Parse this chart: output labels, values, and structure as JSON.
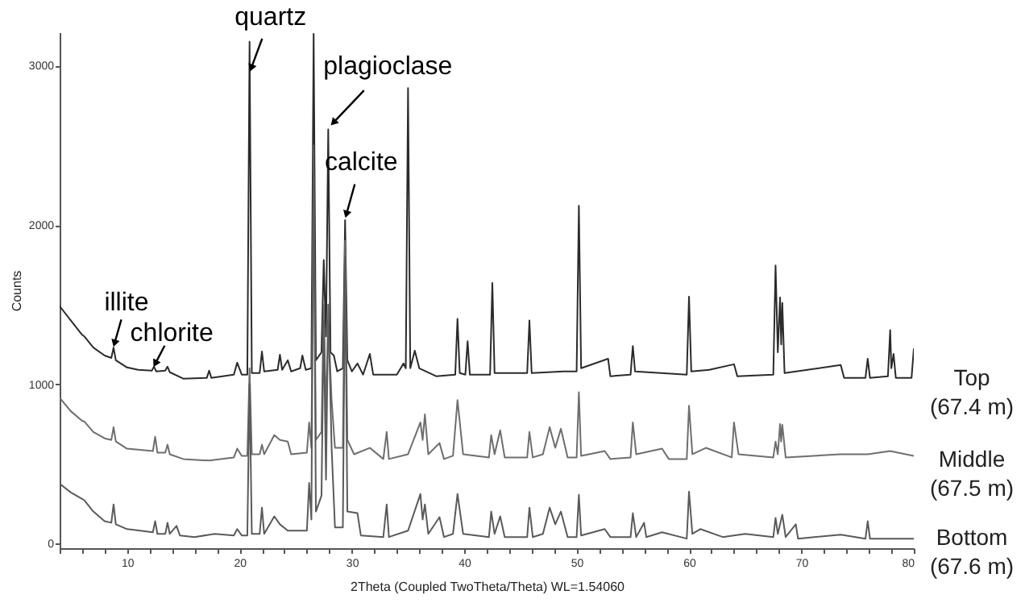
{
  "chart_data": {
    "type": "line",
    "xlabel": "2Theta (Coupled TwoTheta/Theta) WL=1.54060",
    "ylabel": "Counts",
    "xlim": [
      4,
      80
    ],
    "ylim": [
      -30,
      3210
    ],
    "xticks": [
      {
        "value": 4,
        "label": null
      },
      {
        "value": 6,
        "label": null
      },
      {
        "value": 8,
        "label": null
      },
      10,
      {
        "value": 12,
        "label": null
      },
      {
        "value": 14,
        "label": null
      },
      {
        "value": 16,
        "label": null
      },
      {
        "value": 18,
        "label": null
      },
      20,
      {
        "value": 22,
        "label": null
      },
      {
        "value": 24,
        "label": null
      },
      {
        "value": 26,
        "label": null
      },
      {
        "value": 28,
        "label": null
      },
      30,
      {
        "value": 32,
        "label": null
      },
      {
        "value": 34,
        "label": null
      },
      {
        "value": 36,
        "label": null
      },
      {
        "value": 38,
        "label": null
      },
      40,
      {
        "value": 42,
        "label": null
      },
      {
        "value": 44,
        "label": null
      },
      {
        "value": 46,
        "label": null
      },
      {
        "value": 48,
        "label": null
      },
      50,
      {
        "value": 52,
        "label": null
      },
      {
        "value": 54,
        "label": null
      },
      {
        "value": 56,
        "label": null
      },
      {
        "value": 58,
        "label": null
      },
      60,
      {
        "value": 62,
        "label": null
      },
      {
        "value": 64,
        "label": null
      },
      {
        "value": 66,
        "label": null
      },
      {
        "value": 68,
        "label": null
      },
      70,
      {
        "value": 72,
        "label": null
      },
      {
        "value": 74,
        "label": null
      },
      {
        "value": 76,
        "label": null
      },
      {
        "value": 78,
        "label": null
      },
      80
    ],
    "yticks": [
      0,
      1000,
      2000,
      3000
    ],
    "grid": false,
    "legend": false,
    "marker": "none",
    "line_style": "solid",
    "annotations": [
      {
        "text": "quartz",
        "x": 20.9,
        "y": 2950
      },
      {
        "text": "plagioclase",
        "x": 27.9,
        "y": 2600
      },
      {
        "text": "calcite",
        "x": 29.4,
        "y": 2030
      },
      {
        "text": "illite",
        "x": 8.8,
        "y": 1230
      },
      {
        "text": "chlorite",
        "x": 12.4,
        "y": 1110
      }
    ],
    "series": [
      {
        "name": "Top (67.4 m)",
        "color": "#2b2b2b",
        "x": [
          4,
          5,
          6,
          6.2,
          7,
          8,
          8.6,
          8.8,
          9.0,
          10,
          11,
          12.2,
          12.4,
          12.6,
          13.4,
          13.6,
          13.8,
          15,
          17.1,
          17.3,
          17.5,
          19.5,
          19.8,
          20.2,
          20.7,
          20.9,
          21.1,
          21.8,
          22.0,
          22.2,
          23.4,
          23.6,
          23.8,
          24.3,
          24.6,
          25.4,
          25.6,
          25.9,
          26.4,
          26.6,
          26.8,
          27.3,
          27.5,
          27.7,
          27.9,
          28.1,
          28.4,
          28.7,
          29.2,
          29.4,
          29.6,
          30.0,
          30.5,
          31.0,
          31.6,
          31.9,
          34,
          34.6,
          34.8,
          35.0,
          35.2,
          35.6,
          36.0,
          37.5,
          39.2,
          39.4,
          39.6,
          40.1,
          40.3,
          40.5,
          42.3,
          42.5,
          42.7,
          45.6,
          45.8,
          46.0,
          48.8,
          50.0,
          50.2,
          50.4,
          52.8,
          53,
          54.8,
          55.0,
          55.2,
          59.8,
          60.0,
          60.2,
          61.8,
          64.0,
          64.3,
          67.5,
          67.7,
          67.9,
          68.1,
          68.2,
          68.3,
          68.5,
          73.5,
          73.8,
          75.7,
          75.9,
          76.1,
          77.7,
          77.9,
          78.0,
          78.2,
          78.4,
          79.8,
          80.0
        ],
        "values": [
          1490,
          1400,
          1310,
          1300,
          1230,
          1180,
          1165,
          1230,
          1150,
          1105,
          1090,
          1085,
          1110,
          1080,
          1085,
          1110,
          1075,
          1035,
          1040,
          1085,
          1040,
          1060,
          1135,
          1060,
          1060,
          3150,
          1070,
          1070,
          1205,
          1080,
          1090,
          1185,
          1090,
          1150,
          1080,
          1100,
          1180,
          1090,
          1100,
          3200,
          1150,
          1200,
          1780,
          1300,
          2600,
          1200,
          1180,
          1080,
          1100,
          2030,
          1150,
          1080,
          1130,
          1060,
          1190,
          1060,
          1060,
          1130,
          1100,
          2860,
          1100,
          1210,
          1100,
          1050,
          1060,
          1410,
          1070,
          1060,
          1270,
          1060,
          1060,
          1635,
          1070,
          1070,
          1400,
          1070,
          1080,
          1080,
          2120,
          1100,
          1160,
          1050,
          1060,
          1240,
          1080,
          1060,
          1550,
          1080,
          1090,
          1125,
          1050,
          1060,
          1746,
          1200,
          1545,
          1250,
          1510,
          1070,
          1120,
          1040,
          1040,
          1160,
          1040,
          1050,
          1340,
          1100,
          1190,
          1040,
          1040,
          1220
        ]
      },
      {
        "name": "Middle (67.5 m)",
        "color": "#6e6e6e",
        "x": [
          4,
          5,
          6,
          6.2,
          7,
          8,
          8.6,
          8.8,
          9.0,
          10,
          12.3,
          12.5,
          12.7,
          13.4,
          13.6,
          13.8,
          15,
          17.3,
          19.5,
          19.8,
          20.2,
          20.7,
          20.9,
          21.1,
          21.8,
          22.0,
          22.2,
          23.1,
          23.6,
          24.3,
          24.6,
          26.0,
          26.2,
          26.4,
          26.6,
          26.8,
          27.3,
          27.5,
          27.7,
          27.9,
          28.2,
          28.5,
          29.2,
          29.4,
          29.6,
          30.2,
          31.6,
          32.8,
          33.1,
          33.3,
          35.0,
          36.1,
          36.3,
          36.5,
          36.8,
          37.8,
          38.2,
          39.0,
          39.4,
          39.9,
          42.2,
          42.4,
          42.7,
          43.2,
          43.6,
          45.6,
          45.8,
          46.1,
          47.0,
          47.6,
          48.1,
          48.6,
          49.2,
          50.0,
          50.2,
          50.4,
          52.5,
          53,
          54.8,
          55.0,
          55.3,
          57.6,
          58.2,
          59.8,
          60.0,
          60.3,
          61.5,
          63.8,
          64.0,
          64.4,
          67.5,
          67.7,
          67.9,
          68.1,
          68.2,
          68.3,
          68.6,
          73.5,
          75.9,
          77.9,
          80.0
        ],
        "values": [
          915,
          830,
          770,
          765,
          700,
          660,
          650,
          730,
          640,
          595,
          580,
          670,
          570,
          570,
          620,
          560,
          530,
          520,
          540,
          595,
          550,
          550,
          1100,
          560,
          560,
          620,
          560,
          680,
          650,
          640,
          560,
          570,
          760,
          600,
          2300,
          650,
          700,
          1500,
          800,
          1400,
          900,
          600,
          600,
          1900,
          650,
          560,
          600,
          530,
          700,
          530,
          560,
          760,
          650,
          810,
          560,
          630,
          530,
          550,
          900,
          560,
          540,
          680,
          560,
          710,
          540,
          540,
          700,
          540,
          560,
          730,
          600,
          720,
          540,
          540,
          950,
          550,
          580,
          530,
          540,
          760,
          560,
          595,
          530,
          530,
          865,
          560,
          600,
          540,
          760,
          560,
          540,
          640,
          560,
          750,
          640,
          745,
          540,
          560,
          560,
          580,
          550
        ]
      },
      {
        "name": "Bottom (67.6 m)",
        "color": "#5a5a5a",
        "x": [
          4,
          5,
          6,
          6.2,
          7,
          8,
          8.6,
          8.8,
          9.0,
          10,
          12.3,
          12.5,
          12.7,
          13.4,
          13.6,
          13.8,
          14.4,
          14.7,
          16,
          17.8,
          19.5,
          19.8,
          20.2,
          20.7,
          20.9,
          21.1,
          21.8,
          22.0,
          22.2,
          23.1,
          23.6,
          24.3,
          26.0,
          26.2,
          26.4,
          26.6,
          26.8,
          27.3,
          27.5,
          27.7,
          27.9,
          28.2,
          28.5,
          29.2,
          29.4,
          29.6,
          30.5,
          30.8,
          32.8,
          33.1,
          33.3,
          35.0,
          36.1,
          36.3,
          36.5,
          36.8,
          37.8,
          38.2,
          39.0,
          39.4,
          39.9,
          42.2,
          42.4,
          42.7,
          43.2,
          43.6,
          45.6,
          45.8,
          46.1,
          47.0,
          47.6,
          48.1,
          48.6,
          49.2,
          50.0,
          50.2,
          50.4,
          52.5,
          53,
          54.8,
          55.0,
          55.3,
          56.0,
          56.2,
          57.6,
          59.8,
          60.0,
          60.3,
          61.0,
          63,
          65,
          67.5,
          67.7,
          67.9,
          68.3,
          68.6,
          69.5,
          69.7,
          73.5,
          75.7,
          75.9,
          76.1,
          80.0
        ],
        "values": [
          375,
          320,
          280,
          270,
          200,
          140,
          130,
          245,
          120,
          90,
          70,
          140,
          60,
          60,
          130,
          60,
          110,
          50,
          40,
          60,
          50,
          90,
          50,
          50,
          1000,
          60,
          60,
          225,
          60,
          170,
          120,
          80,
          80,
          380,
          150,
          2500,
          200,
          300,
          1400,
          400,
          1500,
          600,
          100,
          100,
          1800,
          200,
          190,
          50,
          40,
          245,
          40,
          80,
          310,
          150,
          245,
          60,
          165,
          40,
          60,
          310,
          60,
          40,
          200,
          60,
          170,
          40,
          40,
          225,
          40,
          60,
          225,
          120,
          200,
          40,
          40,
          305,
          50,
          90,
          40,
          40,
          190,
          40,
          130,
          40,
          70,
          30,
          325,
          60,
          90,
          40,
          60,
          40,
          160,
          60,
          180,
          40,
          120,
          30,
          55,
          30,
          140,
          30,
          30
        ]
      }
    ]
  }
}
